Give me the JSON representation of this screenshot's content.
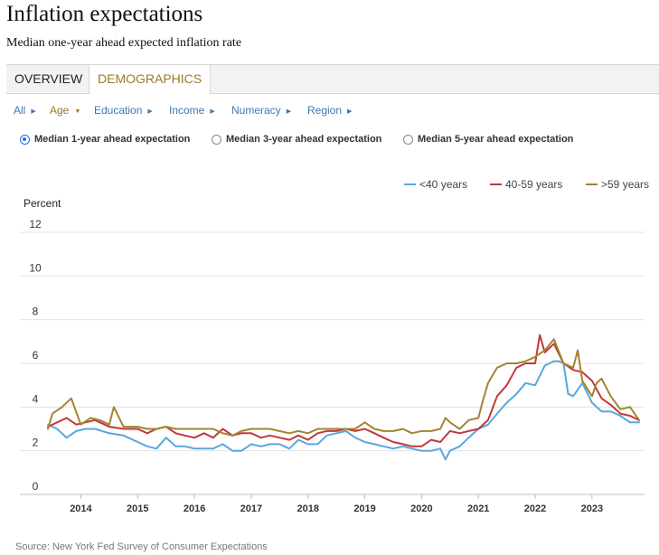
{
  "page": {
    "title": "Inflation expectations",
    "subtitle": "Median one-year ahead expected inflation rate",
    "source": "Source: New York Fed Survey of Consumer Expectations"
  },
  "tabs": [
    {
      "label": "OVERVIEW",
      "active": false
    },
    {
      "label": "DEMOGRAPHICS",
      "active": true
    }
  ],
  "filters": [
    {
      "label": "All",
      "active": false
    },
    {
      "label": "Age",
      "active": true
    },
    {
      "label": "Education",
      "active": false
    },
    {
      "label": "Income",
      "active": false
    },
    {
      "label": "Numeracy",
      "active": false
    },
    {
      "label": "Region",
      "active": false
    }
  ],
  "horizons": [
    {
      "label": "Median 1-year ahead expectation",
      "selected": true
    },
    {
      "label": "Median 3-year ahead expectation",
      "selected": false
    },
    {
      "label": "Median 5-year ahead expectation",
      "selected": false
    }
  ],
  "chart_data": {
    "type": "line",
    "ylabel": "Percent",
    "ylim": [
      0,
      12
    ],
    "yticks": [
      0,
      2,
      4,
      6,
      8,
      10,
      12
    ],
    "xlim": [
      2013.42,
      2023.83
    ],
    "xticks": [
      "2014",
      "2015",
      "2016",
      "2017",
      "2018",
      "2019",
      "2020",
      "2021",
      "2022",
      "2023"
    ],
    "grid": true,
    "legend_position": "top-right",
    "series": [
      {
        "name": "<40 years",
        "color": "#5aa6dc",
        "x": [
          2013.42,
          2013.58,
          2013.75,
          2013.92,
          2014.08,
          2014.25,
          2014.5,
          2014.75,
          2015.0,
          2015.17,
          2015.33,
          2015.5,
          2015.67,
          2015.83,
          2016.0,
          2016.17,
          2016.33,
          2016.5,
          2016.67,
          2016.83,
          2017.0,
          2017.17,
          2017.33,
          2017.5,
          2017.67,
          2017.83,
          2018.0,
          2018.17,
          2018.33,
          2018.5,
          2018.67,
          2018.83,
          2019.0,
          2019.17,
          2019.33,
          2019.5,
          2019.67,
          2019.83,
          2020.0,
          2020.17,
          2020.33,
          2020.42,
          2020.5,
          2020.67,
          2020.83,
          2021.0,
          2021.17,
          2021.33,
          2021.5,
          2021.67,
          2021.83,
          2022.0,
          2022.17,
          2022.33,
          2022.42,
          2022.5,
          2022.58,
          2022.67,
          2022.83,
          2023.0,
          2023.17,
          2023.33,
          2023.5,
          2023.67,
          2023.83
        ],
        "values": [
          3.2,
          3.0,
          2.6,
          2.9,
          3.0,
          3.0,
          2.8,
          2.7,
          2.4,
          2.2,
          2.1,
          2.6,
          2.2,
          2.2,
          2.1,
          2.1,
          2.1,
          2.3,
          2.0,
          2.0,
          2.3,
          2.2,
          2.3,
          2.3,
          2.1,
          2.5,
          2.3,
          2.3,
          2.7,
          2.8,
          2.9,
          2.6,
          2.4,
          2.3,
          2.2,
          2.1,
          2.2,
          2.1,
          2.0,
          2.0,
          2.1,
          1.6,
          2.0,
          2.2,
          2.6,
          3.0,
          3.2,
          3.7,
          4.2,
          4.6,
          5.1,
          5.0,
          5.9,
          6.1,
          6.1,
          6.0,
          4.6,
          4.5,
          5.1,
          4.2,
          3.8,
          3.8,
          3.6,
          3.3,
          3.3
        ]
      },
      {
        "name": "40-59 years",
        "color": "#c0393b",
        "x": [
          2013.42,
          2013.58,
          2013.75,
          2013.92,
          2014.08,
          2014.25,
          2014.5,
          2014.75,
          2015.0,
          2015.17,
          2015.33,
          2015.5,
          2015.67,
          2015.83,
          2016.0,
          2016.17,
          2016.33,
          2016.5,
          2016.67,
          2016.83,
          2017.0,
          2017.17,
          2017.33,
          2017.5,
          2017.67,
          2017.83,
          2018.0,
          2018.17,
          2018.33,
          2018.5,
          2018.67,
          2018.83,
          2019.0,
          2019.17,
          2019.33,
          2019.5,
          2019.67,
          2019.83,
          2020.0,
          2020.17,
          2020.33,
          2020.5,
          2020.67,
          2020.83,
          2021.0,
          2021.17,
          2021.33,
          2021.5,
          2021.67,
          2021.83,
          2022.0,
          2022.08,
          2022.17,
          2022.33,
          2022.5,
          2022.67,
          2022.83,
          2023.0,
          2023.17,
          2023.33,
          2023.5,
          2023.67,
          2023.83
        ],
        "values": [
          3.1,
          3.3,
          3.5,
          3.2,
          3.3,
          3.4,
          3.1,
          3.0,
          3.0,
          2.8,
          3.0,
          3.1,
          2.8,
          2.7,
          2.6,
          2.8,
          2.6,
          3.0,
          2.7,
          2.8,
          2.8,
          2.6,
          2.7,
          2.6,
          2.5,
          2.7,
          2.5,
          2.8,
          2.9,
          2.9,
          3.0,
          2.9,
          3.0,
          2.8,
          2.6,
          2.4,
          2.3,
          2.2,
          2.2,
          2.5,
          2.4,
          2.9,
          2.8,
          2.9,
          3.0,
          3.4,
          4.5,
          5.0,
          5.8,
          6.0,
          6.0,
          7.3,
          6.5,
          6.9,
          6.0,
          5.7,
          5.6,
          5.2,
          4.4,
          4.1,
          3.7,
          3.6,
          3.4
        ]
      },
      {
        "name": ">59 years",
        "color": "#a3842f",
        "x": [
          2013.42,
          2013.5,
          2013.67,
          2013.83,
          2014.0,
          2014.17,
          2014.33,
          2014.5,
          2014.58,
          2014.75,
          2015.0,
          2015.17,
          2015.33,
          2015.5,
          2015.67,
          2015.83,
          2016.0,
          2016.17,
          2016.33,
          2016.5,
          2016.67,
          2016.83,
          2017.0,
          2017.17,
          2017.33,
          2017.5,
          2017.67,
          2017.83,
          2018.0,
          2018.17,
          2018.33,
          2018.5,
          2018.67,
          2018.83,
          2019.0,
          2019.17,
          2019.33,
          2019.5,
          2019.67,
          2019.83,
          2020.0,
          2020.17,
          2020.33,
          2020.42,
          2020.5,
          2020.67,
          2020.83,
          2021.0,
          2021.08,
          2021.17,
          2021.33,
          2021.5,
          2021.67,
          2021.83,
          2022.0,
          2022.17,
          2022.33,
          2022.5,
          2022.67,
          2022.75,
          2022.83,
          2023.0,
          2023.08,
          2023.17,
          2023.33,
          2023.5,
          2023.67,
          2023.83
        ],
        "values": [
          3.0,
          3.7,
          4.0,
          4.4,
          3.2,
          3.5,
          3.4,
          3.2,
          4.0,
          3.1,
          3.1,
          3.0,
          3.0,
          3.1,
          3.0,
          3.0,
          3.0,
          3.0,
          3.0,
          2.8,
          2.7,
          2.9,
          3.0,
          3.0,
          3.0,
          2.9,
          2.8,
          2.9,
          2.8,
          3.0,
          3.0,
          3.0,
          3.0,
          3.0,
          3.3,
          3.0,
          2.9,
          2.9,
          3.0,
          2.8,
          2.9,
          2.9,
          3.0,
          3.5,
          3.3,
          3.0,
          3.4,
          3.5,
          4.3,
          5.1,
          5.8,
          6.0,
          6.0,
          6.1,
          6.3,
          6.6,
          7.1,
          6.0,
          5.8,
          6.6,
          5.2,
          4.5,
          5.1,
          5.3,
          4.5,
          3.9,
          4.0,
          3.4
        ]
      }
    ]
  }
}
